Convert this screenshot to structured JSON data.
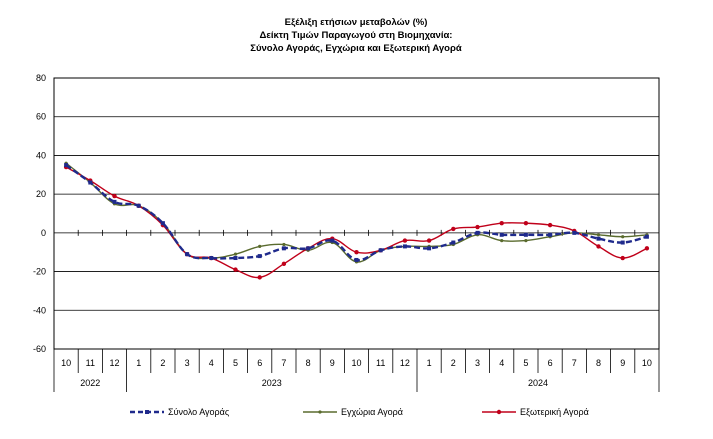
{
  "chart_data": {
    "type": "line",
    "title_lines": [
      "Εξέλιξη ετήσιων μεταβολών (%)",
      "Δείκτη Τιμών Παραγωγού στη Βιομηχανία:",
      "Σύνολο Αγοράς, Εγχώρια και Εξωτερική Αγορά"
    ],
    "x": [
      "10",
      "11",
      "12",
      "1",
      "2",
      "3",
      "4",
      "5",
      "6",
      "7",
      "8",
      "9",
      "10",
      "11",
      "12",
      "1",
      "2",
      "3",
      "4",
      "5",
      "6",
      "7",
      "8",
      "9",
      "10"
    ],
    "year_groups": [
      {
        "label": "2022",
        "start": 0,
        "end": 2
      },
      {
        "label": "2023",
        "start": 3,
        "end": 14
      },
      {
        "label": "2024",
        "start": 15,
        "end": 24
      }
    ],
    "yticks": [
      80,
      60,
      40,
      20,
      0,
      -20,
      -40,
      -60
    ],
    "ylim": [
      -60,
      80
    ],
    "grid": true,
    "legend_position": "bottom",
    "series": [
      {
        "name": "Σύνολο Αγοράς",
        "color": "#1f2a8c",
        "style": "dashed",
        "values": [
          35,
          26,
          16,
          14,
          5,
          -11,
          -13,
          -13,
          -12,
          -8,
          -8,
          -4,
          -14,
          -9,
          -7,
          -8,
          -5,
          0,
          -1,
          -1,
          -1,
          0,
          -3,
          -5,
          -2
        ]
      },
      {
        "name": "Εγχώρια Αγορά",
        "color": "#5a6b2e",
        "style": "solid",
        "values": [
          36,
          26,
          15,
          14,
          5,
          -11,
          -13,
          -11,
          -7,
          -6,
          -9,
          -5,
          -15,
          -9,
          -7,
          -7,
          -6,
          -1,
          -4,
          -4,
          -2,
          0,
          -1,
          -2,
          -1
        ]
      },
      {
        "name": "Εξωτερική Αγορά",
        "color": "#c0001a",
        "style": "solid",
        "values": [
          34,
          27,
          19,
          14,
          4,
          -11,
          -13,
          -19,
          -23,
          -16,
          -8,
          -3,
          -10,
          -9,
          -4,
          -4,
          2,
          3,
          5,
          5,
          4,
          1,
          -7,
          -13,
          -8
        ]
      }
    ]
  }
}
